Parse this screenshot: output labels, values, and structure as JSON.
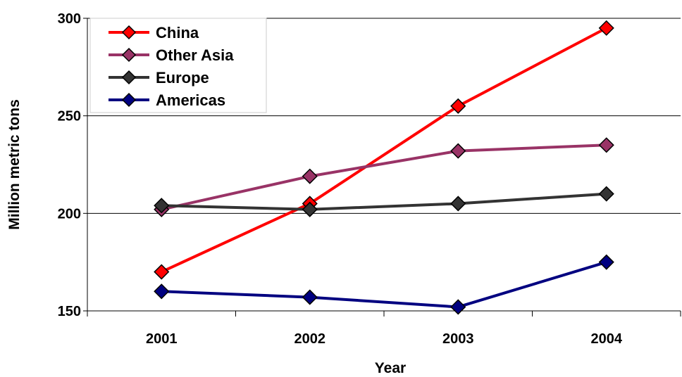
{
  "chart_data": {
    "type": "line",
    "title": "",
    "xlabel": "Year",
    "ylabel": "Million metric tons",
    "x": [
      "2001",
      "2002",
      "2003",
      "2004"
    ],
    "ylim": [
      150,
      300
    ],
    "yticks": [
      150,
      200,
      250,
      300
    ],
    "grid": true,
    "legend_position": "top-left",
    "series": [
      {
        "name": "China",
        "color": "#ff0000",
        "values": [
          170,
          205,
          255,
          295
        ]
      },
      {
        "name": "Other Asia",
        "color": "#993366",
        "values": [
          202,
          219,
          232,
          235
        ]
      },
      {
        "name": "Europe",
        "color": "#333333",
        "values": [
          204,
          202,
          205,
          210
        ]
      },
      {
        "name": "Americas",
        "color": "#000080",
        "values": [
          160,
          157,
          152,
          175
        ]
      }
    ]
  }
}
